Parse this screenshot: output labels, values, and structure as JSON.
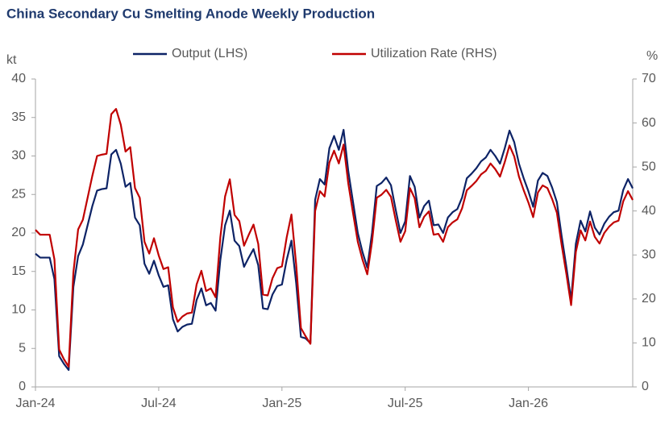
{
  "chart_data": {
    "type": "line",
    "title": "China Secondary Cu Smelting Anode Weekly Production",
    "y_label": "kt",
    "y2_label": "%",
    "categories": [
      "Jan-24",
      null,
      null,
      null,
      null,
      null,
      null,
      null,
      null,
      null,
      null,
      null,
      null,
      null,
      null,
      null,
      null,
      null,
      null,
      null,
      null,
      null,
      null,
      null,
      null,
      null,
      "Jul-24",
      null,
      null,
      null,
      null,
      null,
      null,
      null,
      null,
      null,
      null,
      null,
      null,
      null,
      null,
      null,
      null,
      null,
      null,
      null,
      null,
      null,
      null,
      null,
      null,
      null,
      "Jan-25",
      null,
      null,
      null,
      null,
      null,
      null,
      null,
      null,
      null,
      null,
      null,
      null,
      null,
      null,
      null,
      null,
      null,
      null,
      null,
      null,
      null,
      null,
      null,
      null,
      null,
      "Jul-25",
      null,
      null,
      null,
      null,
      null,
      null,
      null,
      null,
      null,
      null,
      null,
      null,
      null,
      null,
      null,
      null,
      null,
      null,
      null,
      null,
      null,
      null,
      null,
      null,
      null,
      "Jan-26",
      null,
      null,
      null,
      null,
      null,
      null,
      null,
      null,
      null,
      null,
      null,
      null,
      null,
      null,
      null,
      null,
      null,
      null,
      null,
      null,
      null,
      null
    ],
    "series": [
      {
        "name": "Output (LHS)",
        "color": "#0d2366",
        "axis": "y",
        "values": [
          17.3,
          16.8,
          16.8,
          16.8,
          14,
          4,
          3,
          2.2,
          13,
          17,
          18.5,
          21,
          23.5,
          25.5,
          25.7,
          25.8,
          30.2,
          30.8,
          29,
          26,
          26.5,
          22,
          21,
          16,
          14.7,
          16.4,
          14.5,
          13,
          13.2,
          8.8,
          7.2,
          7.8,
          8.1,
          8.2,
          11.3,
          12.8,
          10.6,
          10.9,
          9.9,
          16.5,
          21,
          22.9,
          19,
          18.3,
          15.6,
          16.8,
          17.9,
          15.8,
          10.2,
          10.1,
          12,
          13.1,
          13.3,
          16.5,
          19,
          13.5,
          6.5,
          6.3,
          5.7,
          24.3,
          27,
          26.3,
          31,
          32.6,
          30.8,
          33.4,
          28,
          24,
          20,
          17.5,
          15.5,
          20,
          26.1,
          26.5,
          27.2,
          26.2,
          23,
          20,
          21.5,
          27.4,
          26,
          22,
          23.5,
          24.2,
          21,
          21.1,
          20,
          22,
          22.7,
          23.1,
          24.6,
          27.1,
          27.7,
          28.4,
          29.3,
          29.8,
          30.8,
          30,
          29,
          31,
          33.3,
          31.8,
          29,
          27.1,
          25.4,
          23.4,
          26.8,
          27.8,
          27.4,
          25.9,
          24,
          19.6,
          15.6,
          11.3,
          18.6,
          21.6,
          20.2,
          22.8,
          20.7,
          19.8,
          21.2,
          22.1,
          22.7,
          22.9,
          25.6,
          27,
          25.8
        ]
      },
      {
        "name": "Utilization Rate (RHS)",
        "color": "#c00000",
        "axis": "y2",
        "values": [
          35.7,
          34.6,
          34.6,
          34.6,
          29,
          8.5,
          6.3,
          4.6,
          26,
          35.8,
          38,
          43,
          48,
          52.5,
          52.8,
          53,
          62,
          63.2,
          59.6,
          53.5,
          54.5,
          45.2,
          43,
          33,
          30.3,
          33.8,
          29.9,
          26.8,
          27.2,
          18.1,
          14.8,
          16,
          16.7,
          16.9,
          23.3,
          26.4,
          21.8,
          22.4,
          20.4,
          34,
          43.3,
          47.2,
          39.1,
          37.7,
          32.1,
          34.6,
          36.9,
          32.5,
          21,
          20.8,
          24.7,
          27,
          27.4,
          34,
          39.2,
          27.8,
          13.4,
          11.5,
          9.8,
          40,
          44.5,
          43.3,
          51,
          53.7,
          50.8,
          55.1,
          46.2,
          39.5,
          33,
          28.9,
          25.6,
          33,
          43,
          43.7,
          44.8,
          43.2,
          37.9,
          33,
          35.4,
          45.2,
          42.9,
          36.3,
          38.7,
          39.9,
          34.6,
          34.8,
          33,
          36.3,
          37.4,
          38.1,
          40.6,
          44.7,
          45.7,
          46.8,
          48.3,
          49.1,
          50.8,
          49.5,
          47.8,
          51.1,
          54.9,
          52.4,
          47.8,
          44.7,
          41.9,
          38.6,
          44.2,
          45.8,
          45.2,
          42.7,
          39.6,
          32.3,
          25.7,
          18.6,
          30.7,
          35.6,
          33.3,
          37.6,
          34.1,
          32.6,
          35,
          36.4,
          37.4,
          37.8,
          42.2,
          44.5,
          42.5
        ]
      }
    ],
    "ylim": [
      0,
      40
    ],
    "yticks": [
      0,
      5,
      10,
      15,
      20,
      25,
      30,
      35,
      40
    ],
    "y2lim": [
      0,
      70
    ],
    "y2ticks": [
      0,
      10,
      20,
      30,
      40,
      50,
      60,
      70
    ],
    "grid": false
  }
}
